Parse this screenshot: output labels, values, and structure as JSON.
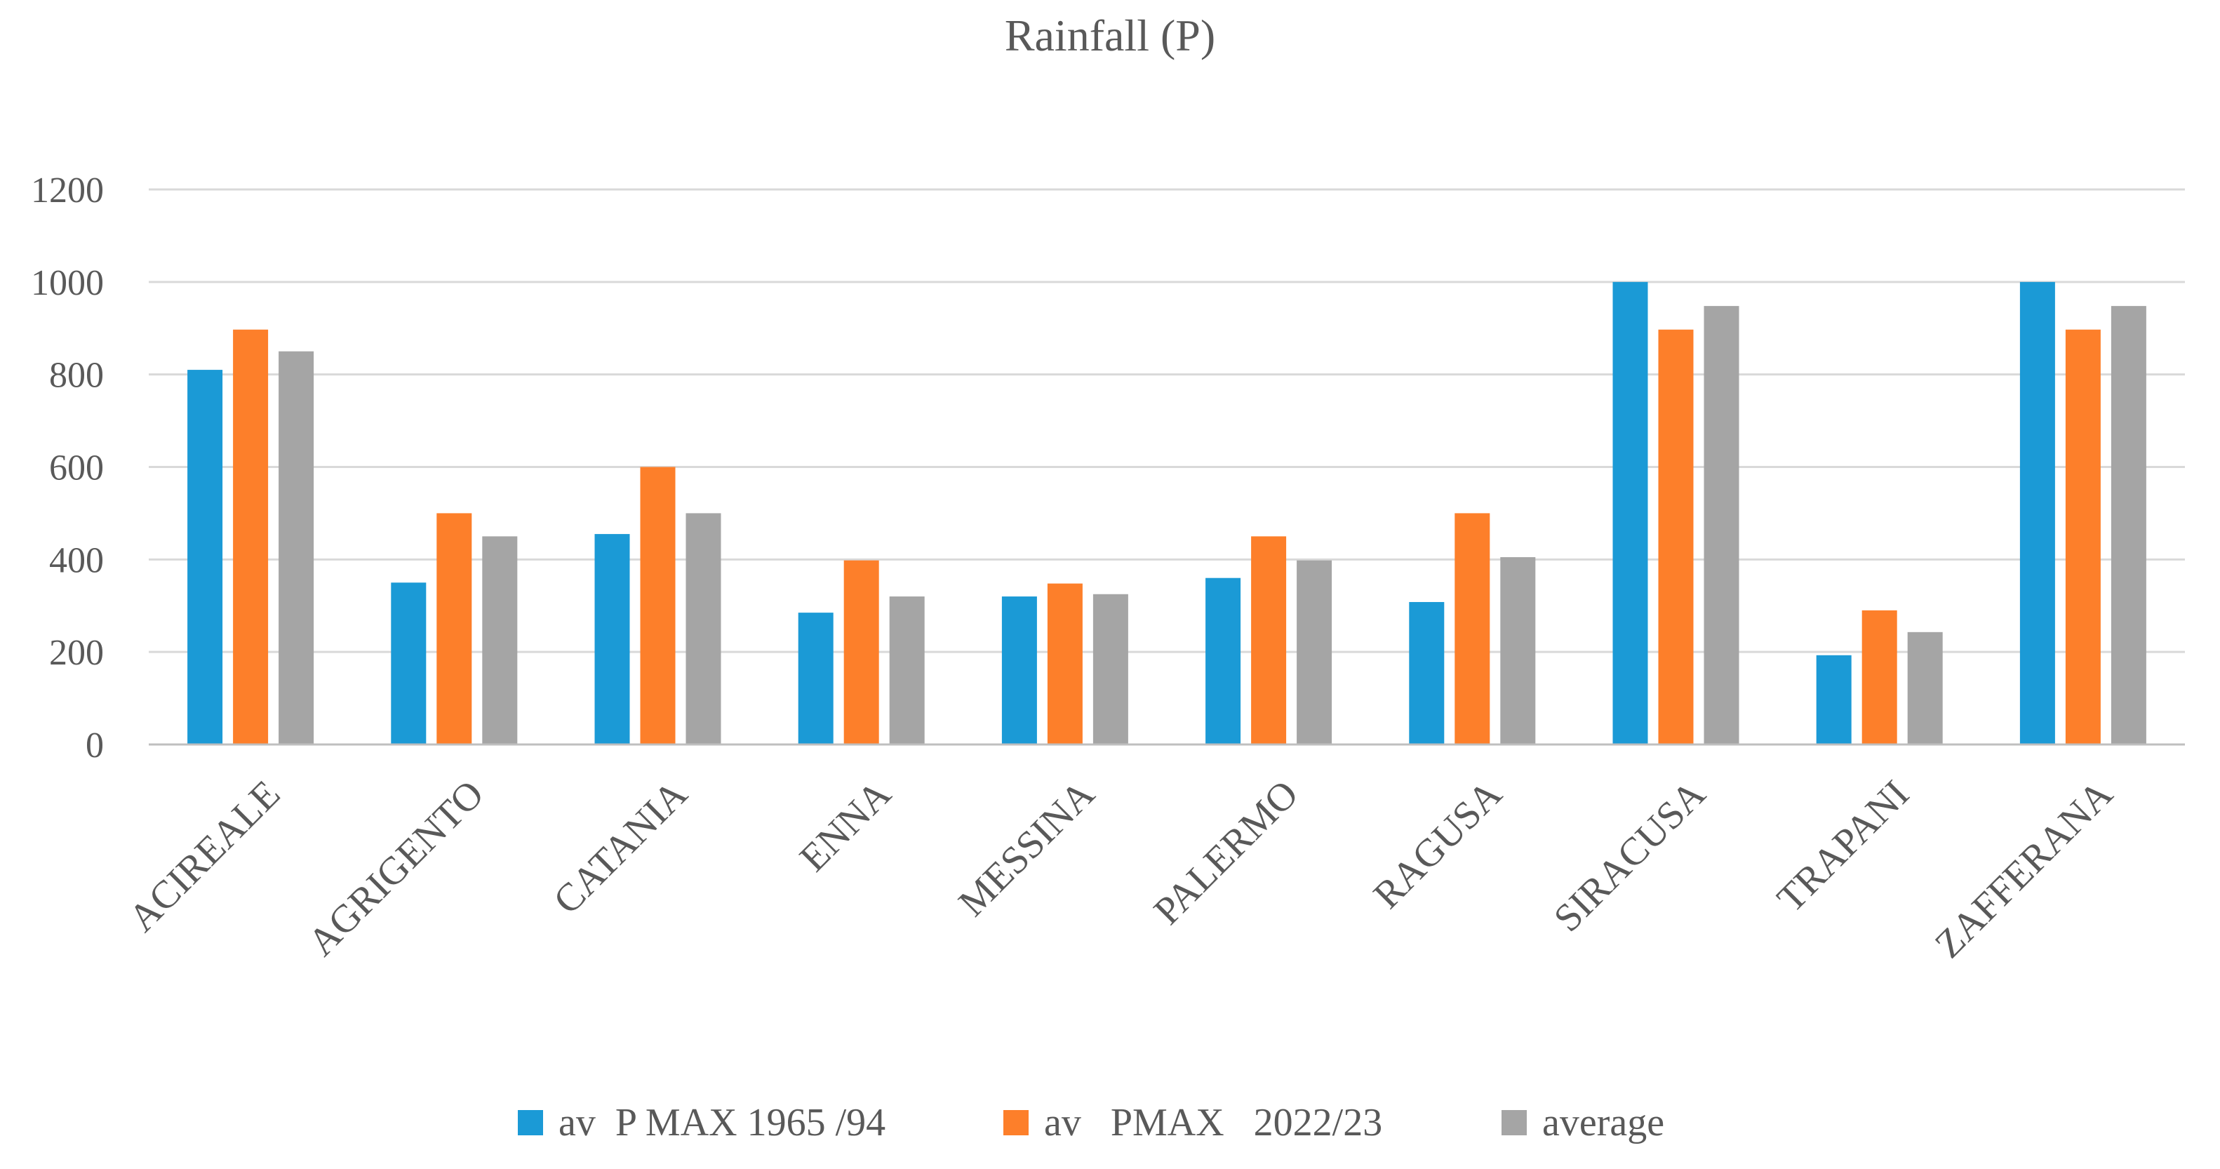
{
  "chart_data": {
    "type": "bar",
    "title": "Rainfall (P)",
    "xlabel": "",
    "ylabel": "",
    "ylim": [
      0,
      1200
    ],
    "yticks": [
      0,
      200,
      400,
      600,
      800,
      1000,
      1200
    ],
    "grid": true,
    "legend_position": "bottom",
    "categories": [
      "ACIREALE",
      "AGRIGENTO",
      "CATANIA",
      "ENNA",
      "MESSINA",
      "PALERMO",
      "RAGUSA",
      "SIRACUSA",
      "TRAPANI",
      "ZAFFERANA"
    ],
    "series": [
      {
        "name": "av  P MAX 1965 /94",
        "color": "#1b9ad6",
        "values": [
          810,
          350,
          455,
          285,
          320,
          360,
          308,
          1000,
          193,
          1000
        ]
      },
      {
        "name": "av   PMAX   2022/23",
        "color": "#fd7f2a",
        "values": [
          897,
          500,
          600,
          398,
          348,
          450,
          500,
          897,
          290,
          897
        ]
      },
      {
        "name": "average",
        "color": "#a5a5a5",
        "values": [
          850,
          450,
          500,
          320,
          325,
          398,
          405,
          948,
          243,
          948
        ]
      }
    ]
  }
}
